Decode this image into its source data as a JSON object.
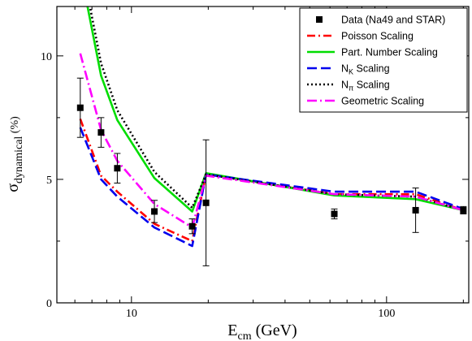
{
  "chart_data": {
    "type": "line",
    "xscale": "log",
    "xlim": [
      5.1,
      210
    ],
    "ylim": [
      0,
      12
    ],
    "x_ticks": [
      {
        "value": 10,
        "label": "10"
      },
      {
        "value": 100,
        "label": "100"
      }
    ],
    "y_ticks": [
      {
        "value": 0,
        "label": "0"
      },
      {
        "value": 5,
        "label": "5"
      },
      {
        "value": 10,
        "label": "10"
      }
    ],
    "xlabel": {
      "main": "E",
      "sub": "cm",
      "unit": " (GeV)"
    },
    "ylabel": {
      "main": "σ",
      "sub": "dynamical",
      "unit": " (%)"
    },
    "legend_position": "top-right",
    "grid": false,
    "data_points": {
      "name": "Data (Na49 and STAR)",
      "color": "#000000",
      "points": [
        {
          "x": 6.3,
          "y": 7.9,
          "err": 1.2
        },
        {
          "x": 7.6,
          "y": 6.9,
          "err": 0.6
        },
        {
          "x": 8.8,
          "y": 5.45,
          "err": 0.6
        },
        {
          "x": 12.3,
          "y": 3.7,
          "err": 0.45
        },
        {
          "x": 17.3,
          "y": 3.1,
          "err": 0.3
        },
        {
          "x": 19.6,
          "y": 4.05,
          "err": 2.55
        },
        {
          "x": 62.4,
          "y": 3.6,
          "err": 0.2
        },
        {
          "x": 130,
          "y": 3.75,
          "err": 0.9
        },
        {
          "x": 200,
          "y": 3.75,
          "err": 0.15
        }
      ]
    },
    "series": [
      {
        "name": "Poisson Scaling",
        "color": "#ff0000",
        "dash": "10,4,2,4",
        "x": [
          6.3,
          7.6,
          8.8,
          12.3,
          17.3,
          19.6,
          62.4,
          130,
          200
        ],
        "y": [
          7.45,
          5.15,
          4.5,
          3.2,
          2.5,
          5.2,
          4.4,
          4.4,
          3.75
        ]
      },
      {
        "name": "Part. Number Scaling",
        "color": "#00dd00",
        "dash": "",
        "x": [
          6.3,
          7.6,
          8.8,
          12.3,
          17.3,
          19.6,
          62.4,
          130,
          200
        ],
        "y": [
          13.5,
          9.2,
          7.4,
          5.05,
          3.7,
          5.25,
          4.35,
          4.2,
          3.75
        ]
      },
      {
        "name": "N_K Scaling",
        "color": "#0000ee",
        "dash": "12,5",
        "x": [
          6.3,
          7.6,
          8.8,
          12.3,
          17.3,
          19.6,
          62.4,
          130,
          200
        ],
        "y": [
          7.1,
          5.0,
          4.3,
          3.05,
          2.3,
          5.2,
          4.5,
          4.5,
          3.8
        ]
      },
      {
        "name": "N_π Scaling",
        "color": "#000000",
        "dash": "2,3",
        "x": [
          6.3,
          7.6,
          8.8,
          12.3,
          17.3,
          19.6,
          62.4,
          130,
          200
        ],
        "y": [
          14.0,
          9.7,
          7.8,
          5.3,
          3.85,
          5.2,
          4.4,
          4.3,
          3.75
        ]
      },
      {
        "name": "Geometric Scaling",
        "color": "#ff00ff",
        "dash": "12,4,2,4",
        "x": [
          6.3,
          7.6,
          8.8,
          12.3,
          17.3,
          19.6,
          62.4,
          130,
          200
        ],
        "y": [
          10.1,
          7.0,
          5.75,
          4.0,
          3.05,
          5.15,
          4.4,
          4.3,
          3.75
        ]
      }
    ],
    "legend_entries": [
      {
        "label": "Data (Na49 and STAR)",
        "kind": "marker",
        "color": "#000000",
        "dash": ""
      },
      {
        "label": "Poisson Scaling",
        "kind": "line",
        "color": "#ff0000",
        "dash": "10,4,2,4"
      },
      {
        "label": "Part. Number Scaling",
        "kind": "line",
        "color": "#00dd00",
        "dash": ""
      },
      {
        "label": "N",
        "sub": "K",
        "label_rest": " Scaling",
        "kind": "line",
        "color": "#0000ee",
        "dash": "12,5"
      },
      {
        "label": "N",
        "sub": "π",
        "label_rest": " Scaling",
        "kind": "line",
        "color": "#000000",
        "dash": "2,3"
      },
      {
        "label": "Geometric Scaling",
        "kind": "line",
        "color": "#ff00ff",
        "dash": "12,4,2,4"
      }
    ]
  }
}
